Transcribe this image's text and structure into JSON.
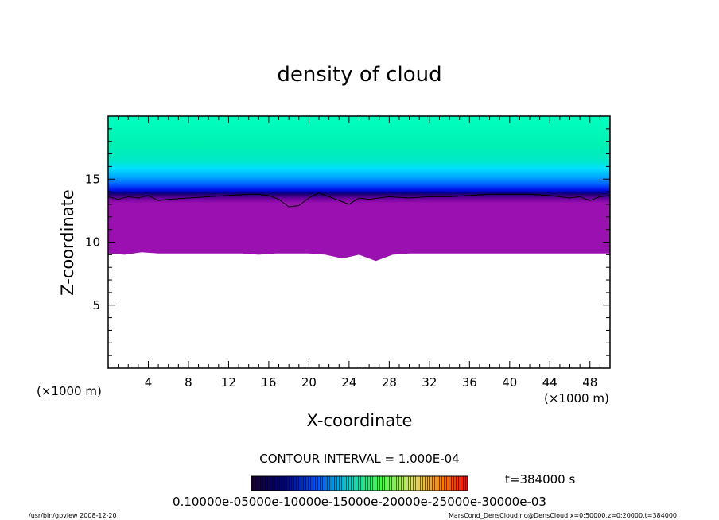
{
  "chart_data": {
    "type": "heatmap",
    "title": "density of cloud",
    "xlabel": "X-coordinate",
    "ylabel": "Z-coordinate",
    "x_unit": "(×1000 m)",
    "y_unit": "(×1000 m)",
    "xlim": [
      0,
      50
    ],
    "ylim": [
      0,
      20
    ],
    "x_ticks": [
      4,
      8,
      12,
      16,
      20,
      24,
      28,
      32,
      36,
      40,
      44,
      48
    ],
    "y_ticks": [
      5,
      10,
      15
    ],
    "contour_interval_text": "CONTOUR INTERVAL = 1.000E-04",
    "time_text": "t=384000 s",
    "colorbar": {
      "range": [
        0.0001,
        0.0007
      ],
      "labels_text": "0.10000e-05000e-10000e-15000e-20000e-25000e-30000e-03"
    },
    "cloud_base_z": [
      9.1,
      9.0,
      9.2,
      9.1,
      9.1,
      9.1,
      9.1,
      9.1,
      9.1,
      9.0,
      9.1,
      9.1,
      9.1,
      9.0,
      8.7,
      9.0,
      8.5,
      9.0,
      9.1,
      9.1,
      9.1,
      9.1,
      9.1,
      9.1,
      9.1,
      9.1,
      9.1,
      9.1,
      9.1,
      9.1,
      9.1
    ],
    "contour_line": {
      "x": [
        0,
        1,
        2,
        3,
        4,
        5,
        6,
        8,
        10,
        12,
        14,
        15,
        16,
        17,
        18,
        19,
        20,
        21,
        22,
        23,
        24,
        25,
        26,
        28,
        30,
        32,
        34,
        36,
        38,
        40,
        42,
        44,
        46,
        47,
        48,
        49,
        50
      ],
      "z": [
        13.6,
        13.4,
        13.6,
        13.5,
        13.7,
        13.3,
        13.4,
        13.5,
        13.6,
        13.7,
        13.8,
        13.8,
        13.7,
        13.4,
        12.8,
        12.9,
        13.5,
        13.9,
        13.6,
        13.3,
        13.0,
        13.5,
        13.4,
        13.6,
        13.5,
        13.6,
        13.6,
        13.7,
        13.8,
        13.8,
        13.8,
        13.7,
        13.5,
        13.6,
        13.3,
        13.6,
        13.7
      ]
    }
  },
  "footer": {
    "left": "/usr/bin/gpview   2008-12-20",
    "right": "MarsCond_DensCloud.nc@DensCloud,x=0:50000,z=0:20000,t=384000"
  }
}
